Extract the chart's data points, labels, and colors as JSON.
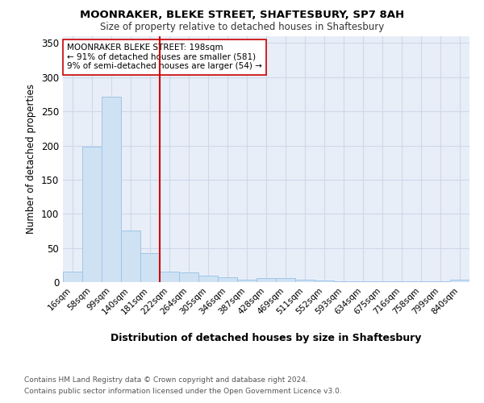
{
  "title1": "MOONRAKER, BLEKE STREET, SHAFTESBURY, SP7 8AH",
  "title2": "Size of property relative to detached houses in Shaftesbury",
  "xlabel": "Distribution of detached houses by size in Shaftesbury",
  "ylabel": "Number of detached properties",
  "categories": [
    "16sqm",
    "58sqm",
    "99sqm",
    "140sqm",
    "181sqm",
    "222sqm",
    "264sqm",
    "305sqm",
    "346sqm",
    "387sqm",
    "428sqm",
    "469sqm",
    "511sqm",
    "552sqm",
    "593sqm",
    "634sqm",
    "675sqm",
    "716sqm",
    "758sqm",
    "799sqm",
    "840sqm"
  ],
  "values": [
    15,
    198,
    271,
    75,
    42,
    15,
    14,
    9,
    7,
    4,
    6,
    6,
    3,
    2,
    1,
    1,
    1,
    1,
    1,
    1,
    4
  ],
  "bar_color": "#cfe2f3",
  "bar_edgecolor": "#9fc5e8",
  "grid_color": "#d0d8e8",
  "background_color": "#ffffff",
  "plot_bg_color": "#e8eef8",
  "vline_color": "#cc0000",
  "annotation_title": "MOONRAKER BLEKE STREET: 198sqm",
  "annotation_line1": "← 91% of detached houses are smaller (581)",
  "annotation_line2": "9% of semi-detached houses are larger (54) →",
  "annotation_box_color": "#ffffff",
  "annotation_box_edgecolor": "#cc0000",
  "ylim": [
    0,
    360
  ],
  "yticks": [
    0,
    50,
    100,
    150,
    200,
    250,
    300,
    350
  ],
  "footnote1": "Contains HM Land Registry data © Crown copyright and database right 2024.",
  "footnote2": "Contains public sector information licensed under the Open Government Licence v3.0."
}
